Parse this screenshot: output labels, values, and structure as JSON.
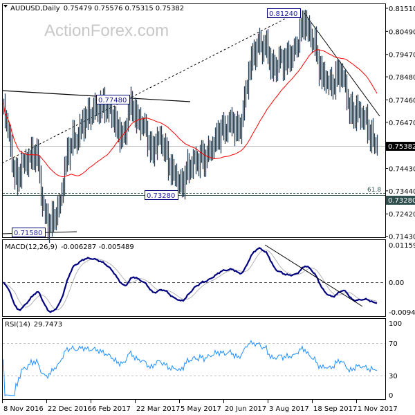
{
  "header": {
    "symbol_label": "AUDUSD,Daily",
    "open": "0.75479",
    "high": "0.75576",
    "low": "0.75315",
    "close": "0.75382"
  },
  "watermark": "ActionForex.com",
  "colors": {
    "bars": "#1c4561",
    "ma": "#ff0000",
    "macd": "#000080",
    "signal": "#b4b4b4",
    "rsi": "#1e90ff",
    "current_price_bg": "#000000",
    "level_bg": "#2f4f4f",
    "label_box": "#000080"
  },
  "chart_data": [
    {
      "type": "bar",
      "title": "AUDUSD,Daily",
      "price_axis_ticks": [
        "0.81510",
        "0.80490",
        "0.79470",
        "0.78480",
        "0.77460",
        "0.76470",
        "0.74430",
        "0.73440",
        "0.72420",
        "0.71430"
      ],
      "ylim": [
        0.7143,
        0.8151
      ],
      "current_price": "0.75382",
      "level_label": "0.73280",
      "fib_label": "61.8",
      "annotations": [
        "0.81240",
        "0.77480",
        "0.73280",
        "0.71580"
      ],
      "date_ticks": [
        "8 Nov 2016",
        "22 Dec 2016",
        "6 Feb 2017",
        "22 Mar 2017",
        "5 May 2017",
        "20 Jun 2017",
        "3 Aug 2017",
        "18 Sep 2017",
        "1 Nov 2017"
      ],
      "closes_approx": [
        0.771,
        0.764,
        0.753,
        0.742,
        0.739,
        0.745,
        0.747,
        0.748,
        0.75,
        0.751,
        0.748,
        0.73,
        0.724,
        0.7193,
        0.721,
        0.724,
        0.727,
        0.736,
        0.748,
        0.753,
        0.758,
        0.756,
        0.761,
        0.765,
        0.767,
        0.768,
        0.77,
        0.7714,
        0.7714,
        0.773,
        0.77,
        0.77,
        0.765,
        0.761,
        0.759,
        0.758,
        0.77,
        0.773,
        0.768,
        0.765,
        0.764,
        0.762,
        0.755,
        0.751,
        0.756,
        0.758,
        0.755,
        0.751,
        0.745,
        0.742,
        0.741,
        0.736,
        0.739,
        0.744,
        0.745,
        0.748,
        0.747,
        0.75,
        0.748,
        0.751,
        0.753,
        0.756,
        0.759,
        0.762,
        0.761,
        0.764,
        0.765,
        0.762,
        0.761,
        0.767,
        0.779,
        0.788,
        0.794,
        0.797,
        0.8,
        0.797,
        0.799,
        0.791,
        0.788,
        0.79,
        0.793,
        0.791,
        0.793,
        0.794,
        0.796,
        0.8,
        0.806,
        0.81,
        0.805,
        0.802,
        0.799,
        0.791,
        0.785,
        0.784,
        0.782,
        0.781,
        0.784,
        0.787,
        0.785,
        0.779,
        0.77,
        0.768,
        0.77,
        0.768,
        0.767,
        0.764,
        0.759,
        0.756,
        0.7538
      ],
      "moving_average": "red line"
    },
    {
      "type": "line",
      "title": "MACD(12,26,9) -0.006287 -0.005489",
      "label_name": "MACD(12,26,9)",
      "values_label": "-0.006287 -0.005489",
      "axis_ticks": [
        "0.01159",
        "0.00",
        "-0.009408"
      ],
      "ylim": [
        -0.009408,
        0.01159
      ]
    },
    {
      "type": "line",
      "title": "RSI(14) 29.7473",
      "label_name": "RSI(14)",
      "value_label": "29.7473",
      "axis_ticks": [
        "100",
        "70",
        "30",
        "0"
      ],
      "ylim": [
        0,
        100
      ],
      "levels": [
        70,
        30
      ]
    }
  ]
}
